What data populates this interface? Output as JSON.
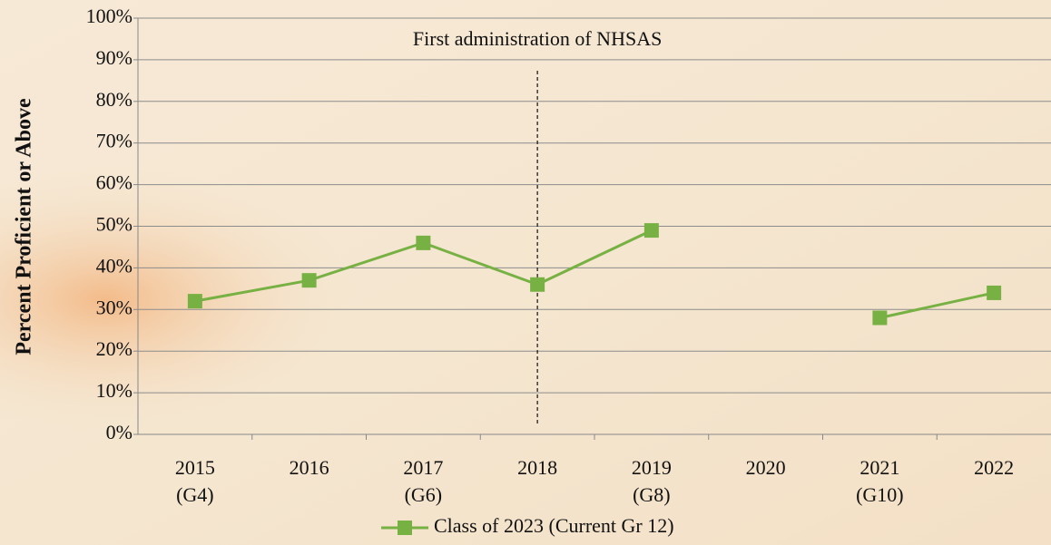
{
  "chart_data": {
    "type": "line",
    "y_axis_label": "Percent Proficient or Above",
    "categories": [
      "2015",
      "2016",
      "2017",
      "2018",
      "2019",
      "2020",
      "2021",
      "2022"
    ],
    "grade_labels": [
      "(G4)",
      null,
      "(G6)",
      null,
      "(G8)",
      null,
      "(G10)",
      null
    ],
    "series": [
      {
        "name": "Class of 2023 (Current Gr 12)",
        "color": "#78b143",
        "values": [
          32,
          37,
          46,
          36,
          49,
          null,
          28,
          34
        ]
      }
    ],
    "ylim": [
      0,
      100
    ],
    "yticks": [
      {
        "value": 0,
        "label": "0%"
      },
      {
        "value": 10,
        "label": "10%"
      },
      {
        "value": 20,
        "label": "20%"
      },
      {
        "value": 30,
        "label": "30%"
      },
      {
        "value": 40,
        "label": "40%"
      },
      {
        "value": 50,
        "label": "50%"
      },
      {
        "value": 60,
        "label": "60%"
      },
      {
        "value": 70,
        "label": "70%"
      },
      {
        "value": 80,
        "label": "80%"
      },
      {
        "value": 90,
        "label": "90%"
      },
      {
        "value": 100,
        "label": "100%"
      }
    ],
    "grid": true,
    "reference_line": {
      "x": "2018",
      "label": "First administration of NHSAS"
    },
    "legend": "bottom"
  }
}
